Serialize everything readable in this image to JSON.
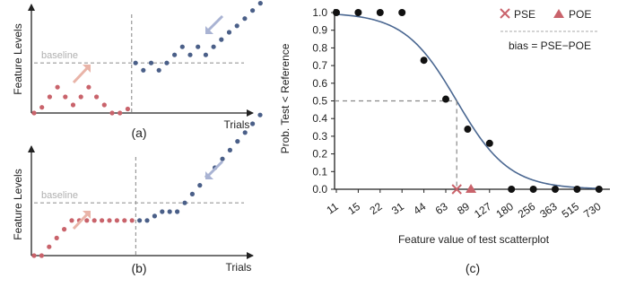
{
  "colors": {
    "red_dots": "#c9636b",
    "blue_dots": "#4a5f88",
    "red_arrow": "#e9b4a8",
    "blue_arrow": "#a9b3d3",
    "baseline": "#999999",
    "curve": "#4a6791",
    "marker_red": "#c9636b",
    "axis": "#222222"
  },
  "chart_data": [
    {
      "type": "scatter",
      "panel_label": "(a)",
      "ylabel": "Feature Levels",
      "xlabel": "Trials",
      "baseline_label": "baseline",
      "baseline_level": 0.62,
      "split_trial": 12.5,
      "red_series": {
        "x": [
          0,
          1,
          2,
          3,
          4,
          5,
          6,
          7,
          8,
          9,
          10,
          11,
          12
        ],
        "y": [
          0,
          0.07,
          0.2,
          0.32,
          0.2,
          0.1,
          0.2,
          0.32,
          0.2,
          0.1,
          0,
          0,
          0.05
        ]
      },
      "blue_series": {
        "x": [
          13,
          14,
          15,
          16,
          17,
          18,
          19,
          20,
          21,
          22,
          23,
          24,
          25,
          26,
          27,
          28,
          29
        ],
        "y": [
          0.62,
          0.53,
          0.62,
          0.53,
          0.62,
          0.72,
          0.82,
          0.72,
          0.82,
          0.72,
          0.82,
          0.91,
          1.0,
          1.08,
          1.17,
          1.27,
          1.36
        ]
      }
    },
    {
      "type": "scatter",
      "panel_label": "(b)",
      "ylabel": "Feature Levels",
      "xlabel": "Trials",
      "baseline_label": "baseline",
      "baseline_level": 0.6,
      "split_trial": 13.5,
      "red_series": {
        "x": [
          0,
          1,
          2,
          3,
          4,
          5,
          6,
          7,
          8,
          9,
          10,
          11,
          12,
          13
        ],
        "y": [
          0,
          0,
          0.1,
          0.2,
          0.3,
          0.4,
          0.4,
          0.4,
          0.4,
          0.4,
          0.4,
          0.4,
          0.4,
          0.4
        ]
      },
      "blue_series": {
        "x": [
          14,
          15,
          16,
          17,
          18,
          19,
          20,
          21,
          22,
          23,
          24,
          25,
          26,
          27,
          28,
          29,
          30
        ],
        "y": [
          0.4,
          0.4,
          0.45,
          0.5,
          0.5,
          0.5,
          0.6,
          0.7,
          0.8,
          0.9,
          1.0,
          1.1,
          1.2,
          1.3,
          1.4,
          1.5,
          1.6
        ]
      }
    },
    {
      "type": "scatter",
      "panel_label": "(c)",
      "xlabel": "Feature value of test scatterplot",
      "ylabel": "Prob. Test < Reference",
      "ylim": [
        0,
        1
      ],
      "yticks": [
        "0.0",
        "0.1",
        "0.2",
        "0.3",
        "0.4",
        "0.5",
        "0.6",
        "0.7",
        "0.8",
        "0.9",
        "1.0"
      ],
      "categories": [
        "11",
        "15",
        "22",
        "31",
        "44",
        "63",
        "89",
        "127",
        "180",
        "256",
        "363",
        "515",
        "730"
      ],
      "points": [
        {
          "x": "11",
          "y": 1.0
        },
        {
          "x": "15",
          "y": 1.0
        },
        {
          "x": "22",
          "y": 1.0
        },
        {
          "x": "31",
          "y": 1.0
        },
        {
          "x": "44",
          "y": 0.73
        },
        {
          "x": "63",
          "y": 0.51
        },
        {
          "x": "89",
          "y": 0.34
        },
        {
          "x": "127",
          "y": 0.26
        },
        {
          "x": "180",
          "y": 0.0
        },
        {
          "x": "256",
          "y": 0.0
        },
        {
          "x": "363",
          "y": 0.0
        },
        {
          "x": "515",
          "y": 0.0
        },
        {
          "x": "730",
          "y": 0.0
        }
      ],
      "fit_curve": {
        "midpoint_index": 5.5,
        "scale_index": 1.2
      },
      "pse_index": 5.5,
      "poe_index": 6.15,
      "legend": {
        "pse": "PSE",
        "poe": "POE",
        "bias": "bias = PSE−POE"
      },
      "legend_position": "top-right"
    }
  ]
}
